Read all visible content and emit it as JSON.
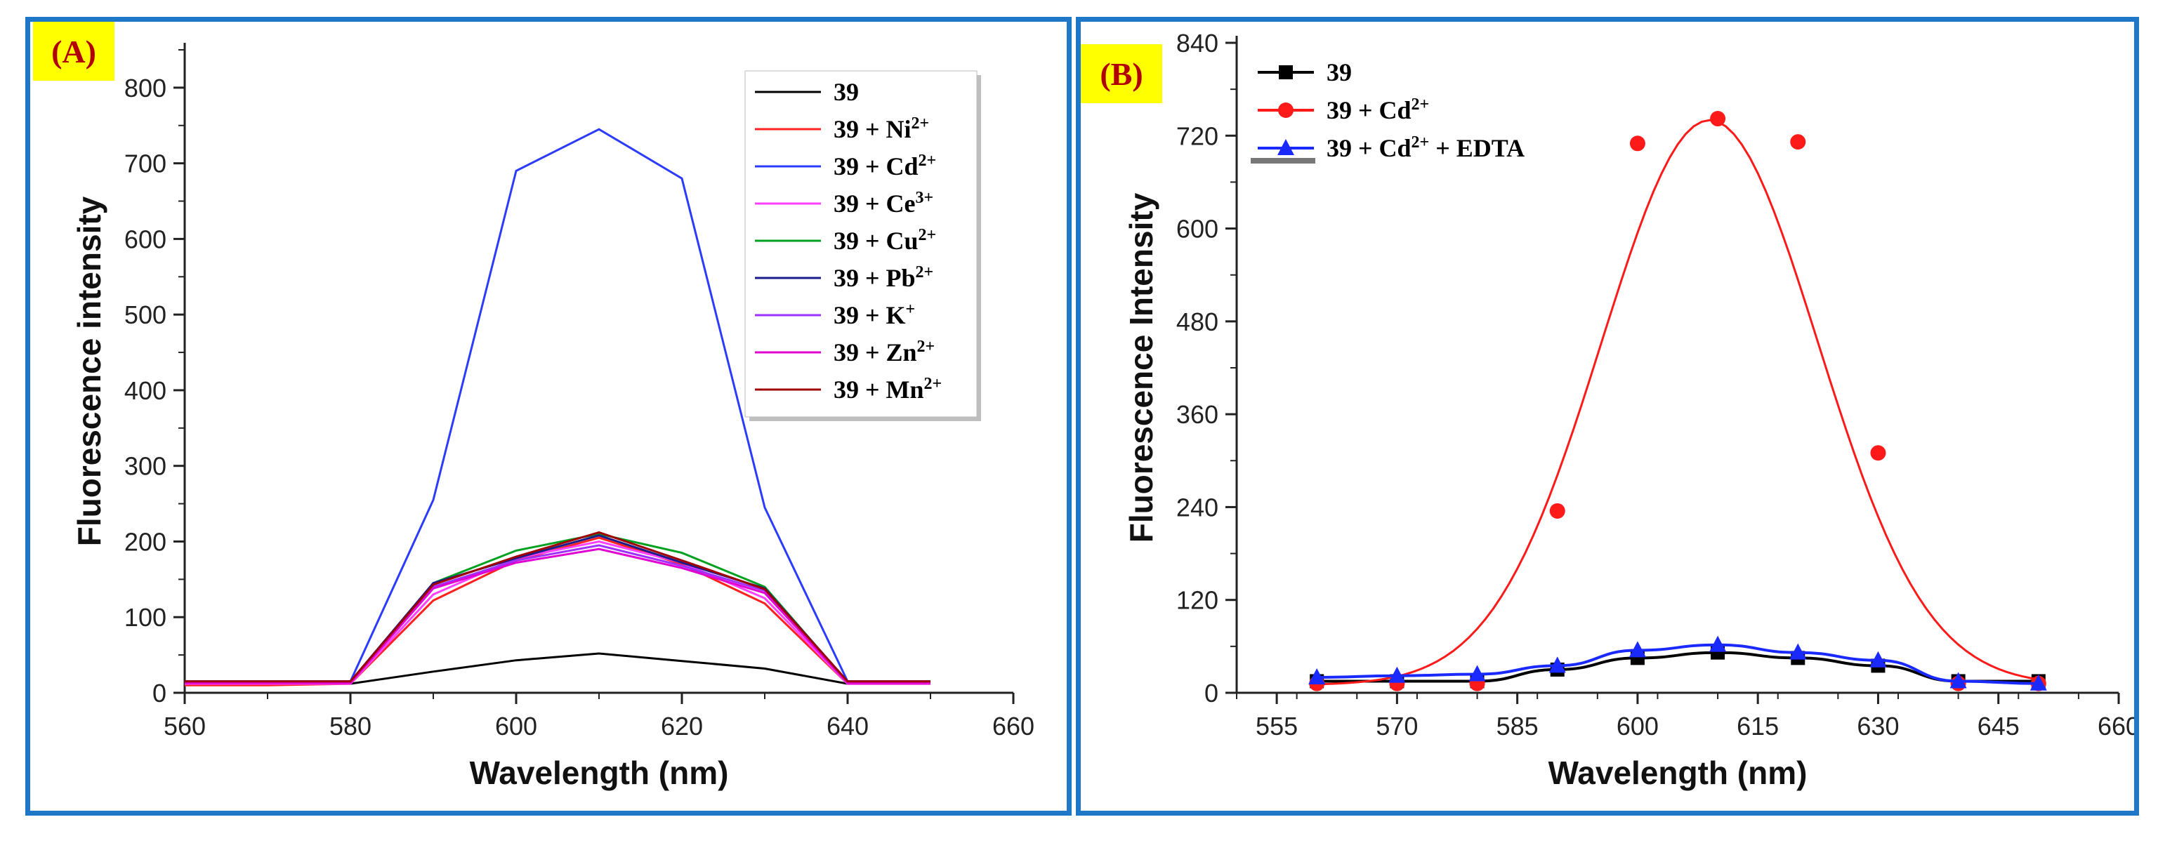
{
  "chart_data": [
    {
      "panel_label": "(A)",
      "type": "line",
      "xlabel": "Wavelength (nm)",
      "ylabel": "Fluorescence intensity",
      "xlim": [
        560,
        660
      ],
      "ylim": [
        0,
        850
      ],
      "xticks": [
        560,
        580,
        600,
        620,
        640,
        660
      ],
      "yticks": [
        0,
        100,
        200,
        300,
        400,
        500,
        600,
        700,
        800
      ],
      "legend_position": "top-right",
      "x": [
        560,
        570,
        580,
        590,
        600,
        610,
        620,
        630,
        640,
        650
      ],
      "series": [
        {
          "name": "39",
          "sup": "",
          "color": "#000000",
          "values": [
            12,
            12,
            12,
            28,
            43,
            52,
            42,
            32,
            12,
            12
          ]
        },
        {
          "name": "39 + Ni",
          "sup": "2+",
          "color": "#ff2020",
          "values": [
            10,
            10,
            12,
            122,
            175,
            205,
            170,
            118,
            12,
            12
          ]
        },
        {
          "name": "39 + Cd",
          "sup": "2+",
          "color": "#2b3bff",
          "values": [
            15,
            15,
            15,
            255,
            690,
            745,
            680,
            245,
            15,
            15
          ]
        },
        {
          "name": "39 + Ce",
          "sup": "3+",
          "color": "#ff40ff",
          "values": [
            12,
            12,
            12,
            130,
            178,
            200,
            172,
            125,
            12,
            12
          ]
        },
        {
          "name": "39 + Cu",
          "sup": "2+",
          "color": "#00a020",
          "values": [
            14,
            14,
            14,
            145,
            188,
            210,
            185,
            140,
            14,
            14
          ]
        },
        {
          "name": "39 + Pb",
          "sup": "2+",
          "color": "#1a1a8c",
          "values": [
            15,
            15,
            15,
            145,
            178,
            208,
            172,
            138,
            15,
            15
          ]
        },
        {
          "name": "39 + K",
          "sup": "+",
          "color": "#a030ff",
          "values": [
            14,
            14,
            14,
            140,
            175,
            195,
            168,
            135,
            14,
            14
          ]
        },
        {
          "name": "39 + Zn",
          "sup": "2+",
          "color": "#e000d0",
          "values": [
            13,
            13,
            13,
            138,
            172,
            190,
            165,
            132,
            13,
            13
          ]
        },
        {
          "name": "39 + Mn",
          "sup": "2+",
          "color": "#a00000",
          "values": [
            15,
            15,
            15,
            143,
            180,
            212,
            175,
            137,
            15,
            15
          ]
        }
      ]
    },
    {
      "panel_label": "(B)",
      "type": "line",
      "xlabel": "Wavelength (nm)",
      "ylabel": "Fluorescence Intensity",
      "xlim": [
        550,
        660
      ],
      "ylim": [
        0,
        840
      ],
      "xticks": [
        555,
        570,
        585,
        600,
        615,
        630,
        645,
        660
      ],
      "yticks": [
        0,
        120,
        240,
        360,
        480,
        600,
        720,
        840
      ],
      "legend_position": "top-left",
      "series": [
        {
          "name": "39",
          "sup": "",
          "color": "#000000",
          "marker": "square",
          "x": [
            560,
            570,
            580,
            590,
            600,
            610,
            620,
            630,
            640,
            650
          ],
          "values": [
            15,
            15,
            15,
            30,
            45,
            52,
            45,
            35,
            15,
            15
          ]
        },
        {
          "name": "39 + Cd",
          "sup": "2+",
          "color": "#ff1a1a",
          "marker": "circle",
          "x": [
            560,
            570,
            580,
            590,
            600,
            610,
            620,
            630,
            640,
            650
          ],
          "values": [
            12,
            12,
            12,
            235,
            710,
            742,
            712,
            310,
            12,
            12
          ],
          "fit": "gaussian"
        },
        {
          "name": "39 + Cd",
          "sup": "2+",
          "suffix": " + EDTA",
          "color": "#1a2aff",
          "marker": "triangle",
          "x": [
            560,
            570,
            580,
            590,
            600,
            610,
            620,
            630,
            640,
            650
          ],
          "values": [
            20,
            22,
            24,
            35,
            55,
            62,
            52,
            42,
            15,
            12
          ]
        }
      ]
    }
  ]
}
